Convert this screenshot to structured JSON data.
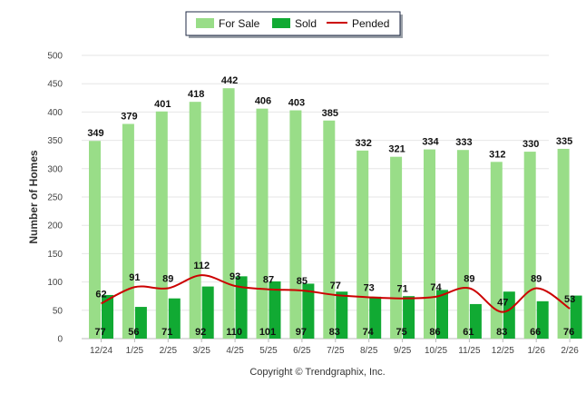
{
  "chart_data": {
    "type": "bar",
    "title": "",
    "xlabel": "",
    "ylabel": "Number of Homes",
    "ylim": [
      0,
      500
    ],
    "yticks": [
      0,
      50,
      100,
      150,
      200,
      250,
      300,
      350,
      400,
      450,
      500
    ],
    "grid": true,
    "legend_position": "top-center",
    "categories": [
      "12/24",
      "1/25",
      "2/25",
      "3/25",
      "4/25",
      "5/25",
      "6/25",
      "7/25",
      "8/25",
      "9/25",
      "10/25",
      "11/25",
      "12/25",
      "1/26",
      "2/26"
    ],
    "series": [
      {
        "name": "For Sale",
        "type": "bar",
        "color": "#99dd88",
        "values": [
          349,
          379,
          401,
          418,
          442,
          406,
          403,
          385,
          332,
          321,
          334,
          333,
          312,
          330,
          335
        ]
      },
      {
        "name": "Sold",
        "type": "bar",
        "color": "#11aa33",
        "values": [
          77,
          56,
          71,
          92,
          110,
          101,
          97,
          83,
          74,
          75,
          86,
          61,
          83,
          66,
          76
        ]
      },
      {
        "name": "Pended",
        "type": "line",
        "color": "#cc0000",
        "values": [
          62,
          91,
          89,
          112,
          93,
          87,
          85,
          77,
          73,
          71,
          74,
          89,
          47,
          89,
          53
        ]
      }
    ]
  },
  "footer": {
    "copyright": "Copyright © Trendgraphix, Inc."
  }
}
